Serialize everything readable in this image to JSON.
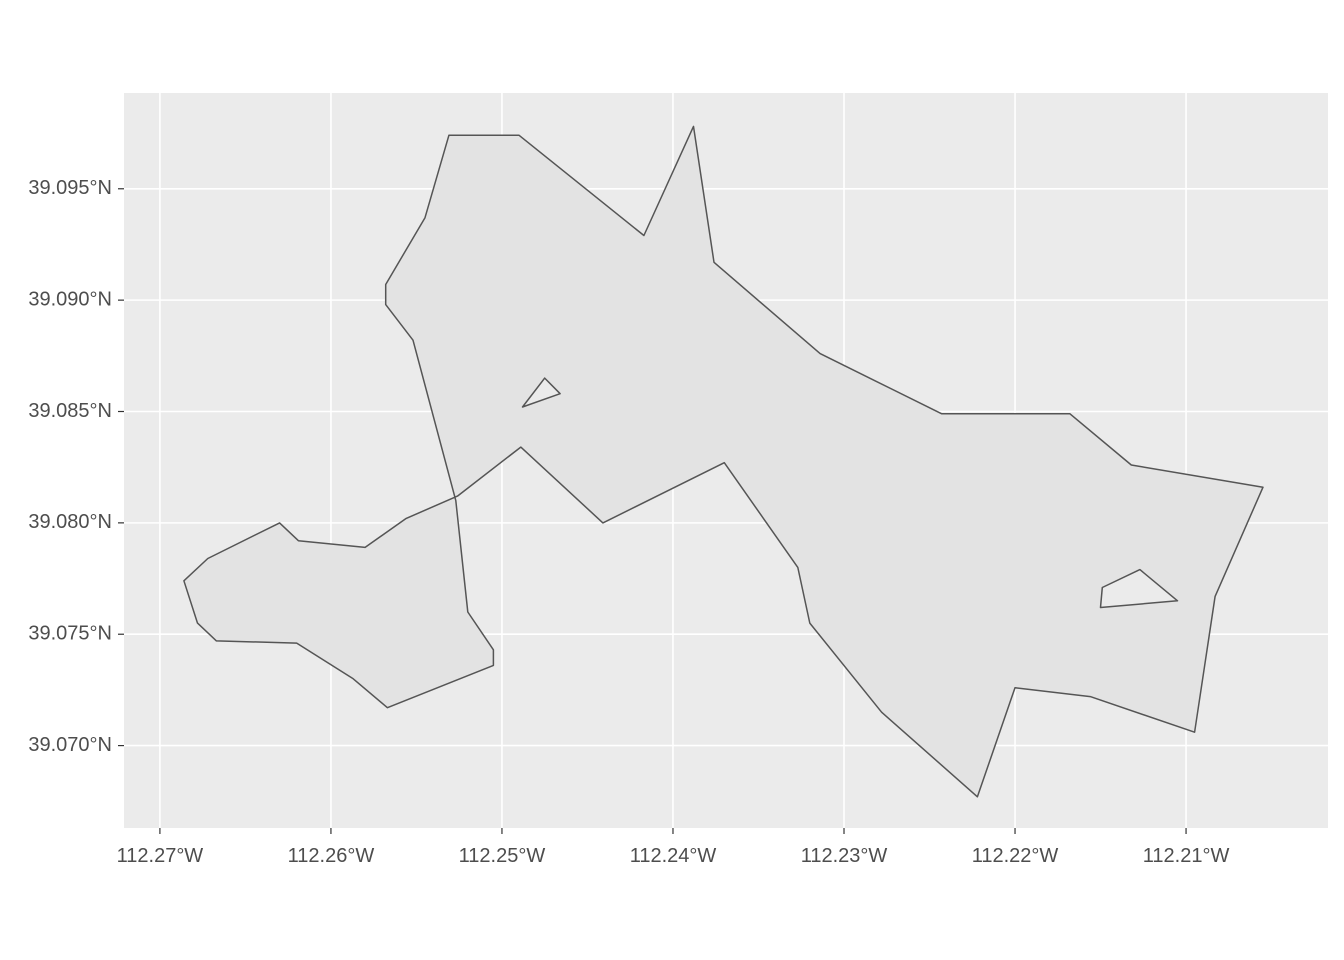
{
  "chart_data": {
    "type": "map",
    "title": "",
    "xlabel": "",
    "ylabel": "",
    "panel_background": "#ebebeb",
    "grid_color": "#ffffff",
    "polygon_fill": "#e3e3e3",
    "polygon_stroke": "#555555",
    "grid": true,
    "xlim": [
      -112.2721,
      -112.2017
    ],
    "ylim": [
      39.0663,
      39.0993
    ],
    "x_ticks": [
      {
        "value": -112.27,
        "label": "112.27°W"
      },
      {
        "value": -112.26,
        "label": "112.26°W"
      },
      {
        "value": -112.25,
        "label": "112.25°W"
      },
      {
        "value": -112.24,
        "label": "112.24°W"
      },
      {
        "value": -112.23,
        "label": "112.23°W"
      },
      {
        "value": -112.22,
        "label": "112.22°W"
      },
      {
        "value": -112.21,
        "label": "112.21°W"
      }
    ],
    "y_ticks": [
      {
        "value": 39.095,
        "label": "39.095°N"
      },
      {
        "value": 39.09,
        "label": "39.090°N"
      },
      {
        "value": 39.085,
        "label": "39.085°N"
      },
      {
        "value": 39.08,
        "label": "39.080°N"
      },
      {
        "value": 39.075,
        "label": "39.075°N"
      },
      {
        "value": 39.07,
        "label": "39.070°N"
      }
    ],
    "polygons": [
      {
        "name": "polygon-main",
        "outer": [
          [
            -112.2531,
            39.0974
          ],
          [
            -112.249,
            39.0974
          ],
          [
            -112.2417,
            39.0929
          ],
          [
            -112.2388,
            39.0978
          ],
          [
            -112.2376,
            39.0917
          ],
          [
            -112.2314,
            39.0876
          ],
          [
            -112.2243,
            39.0849
          ],
          [
            -112.2168,
            39.0849
          ],
          [
            -112.2132,
            39.0826
          ],
          [
            -112.2055,
            39.0816
          ],
          [
            -112.2083,
            39.0767
          ],
          [
            -112.2095,
            39.0706
          ],
          [
            -112.2156,
            39.0722
          ],
          [
            -112.22,
            39.0726
          ],
          [
            -112.2222,
            39.0677
          ],
          [
            -112.2278,
            39.0715
          ],
          [
            -112.232,
            39.0755
          ],
          [
            -112.2327,
            39.078
          ],
          [
            -112.237,
            39.0827
          ],
          [
            -112.2441,
            39.08
          ],
          [
            -112.2489,
            39.0834
          ],
          [
            -112.2526,
            39.0812
          ],
          [
            -112.2556,
            39.0802
          ],
          [
            -112.258,
            39.0789
          ],
          [
            -112.2619,
            39.0792
          ],
          [
            -112.263,
            39.08
          ],
          [
            -112.2672,
            39.0784
          ],
          [
            -112.2686,
            39.0774
          ],
          [
            -112.2678,
            39.0755
          ],
          [
            -112.2667,
            39.0747
          ],
          [
            -112.262,
            39.0746
          ],
          [
            -112.2587,
            39.073
          ],
          [
            -112.2567,
            39.0717
          ],
          [
            -112.2505,
            39.0736
          ],
          [
            -112.2505,
            39.0743
          ],
          [
            -112.252,
            39.076
          ],
          [
            -112.2527,
            39.081
          ],
          [
            -112.2552,
            39.0882
          ],
          [
            -112.2568,
            39.0898
          ],
          [
            -112.2568,
            39.0907
          ],
          [
            -112.2545,
            39.0937
          ]
        ],
        "holes": [
          [
            [
              -112.2488,
              39.0852
            ],
            [
              -112.2475,
              39.0865
            ],
            [
              -112.2466,
              39.0858
            ]
          ],
          [
            [
              -112.215,
              39.0762
            ],
            [
              -112.2149,
              39.0771
            ],
            [
              -112.2127,
              39.0779
            ],
            [
              -112.2105,
              39.0765
            ]
          ]
        ]
      }
    ]
  }
}
